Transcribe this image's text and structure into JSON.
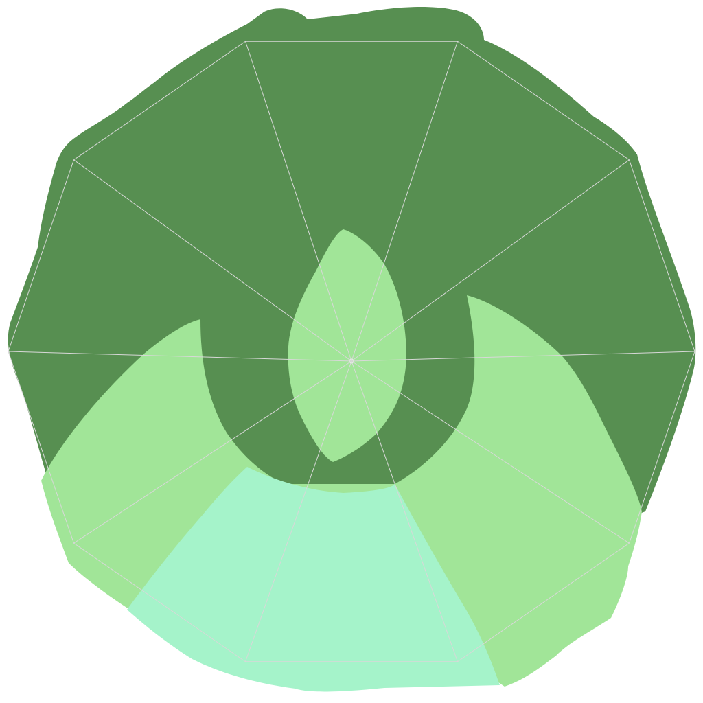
{
  "artwork": {
    "shape": "decagon-badge",
    "segments": 10,
    "colors": {
      "background": "#ffffff",
      "outer_band": "#578f51",
      "flame_leaf": "#a1e598",
      "base_glow": "#a5f3ca",
      "guide_lines": "#d8d8d8"
    }
  }
}
